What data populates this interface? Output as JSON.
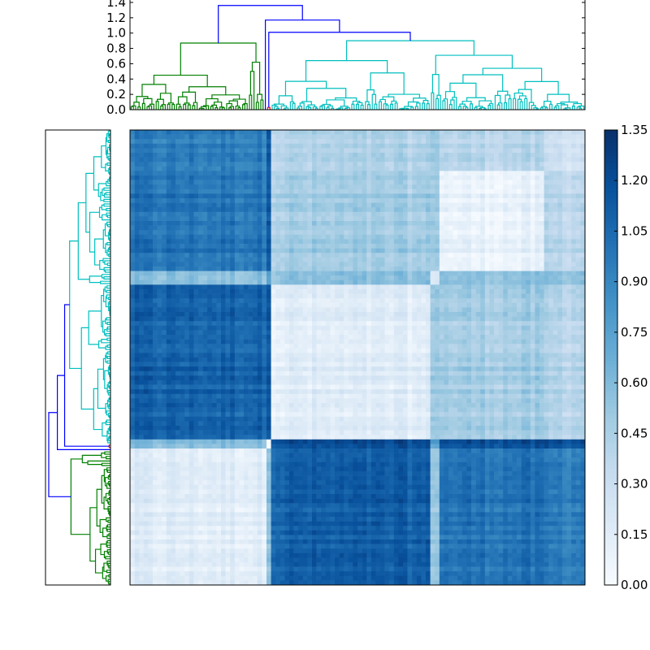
{
  "chart_data": {
    "type": "heatmap",
    "title": "",
    "description_kind": "clustered distance matrix with row and column dendrograms",
    "colormap": "Blues",
    "colormap_stops": [
      "#f7fbff",
      "#deebf7",
      "#c6dbef",
      "#9ecae1",
      "#6baed6",
      "#4292c6",
      "#2171b5",
      "#08519c",
      "#08306b"
    ],
    "value_range": [
      0.0,
      1.35
    ],
    "colorbar": {
      "ticks": [
        0.0,
        0.15,
        0.3,
        0.45,
        0.6,
        0.75,
        0.9,
        1.05,
        1.2,
        1.35
      ],
      "tick_labels": [
        "0.00",
        "0.15",
        "0.30",
        "0.45",
        "0.60",
        "0.75",
        "0.90",
        "1.05",
        "1.20",
        "1.35"
      ],
      "placement": "right"
    },
    "leaf_count": 200,
    "clusters": [
      {
        "name": "green",
        "leaves": [
          0,
          60
        ]
      },
      {
        "name": "red",
        "leaves": [
          60,
          63
        ]
      },
      {
        "name": "cyan-1",
        "leaves": [
          63,
          132
        ]
      },
      {
        "name": "cyan-2a",
        "leaves": [
          132,
          137
        ]
      },
      {
        "name": "cyan-2b",
        "leaves": [
          137,
          182
        ]
      },
      {
        "name": "cyan-2c",
        "leaves": [
          182,
          200
        ]
      }
    ],
    "block_mean_distance": [
      [
        0.15,
        0.6,
        1.1,
        0.55,
        1.0,
        0.95
      ],
      [
        0.6,
        0.02,
        1.2,
        0.8,
        1.2,
        1.2
      ],
      [
        1.1,
        1.2,
        0.15,
        0.55,
        0.48,
        0.42
      ],
      [
        0.55,
        0.8,
        0.55,
        0.2,
        0.55,
        0.55
      ],
      [
        1.0,
        1.2,
        0.48,
        0.55,
        0.1,
        0.4
      ],
      [
        0.95,
        1.2,
        0.42,
        0.55,
        0.4,
        0.28
      ]
    ],
    "dendrogram": {
      "ylim": [
        0.0,
        1.4
      ],
      "yticks": [
        0.0,
        0.2,
        0.4,
        0.6,
        0.8,
        1.0,
        1.2,
        1.4
      ],
      "ytick_labels": [
        "0.0",
        "0.2",
        "0.4",
        "0.6",
        "0.8",
        "1.0",
        "1.2",
        "1.4"
      ],
      "link_colors": {
        "green": "#008000",
        "red": "#ff0000",
        "cyan": "#00bfbf",
        "blue": "#0000ff"
      },
      "tree": {
        "h": 1.36,
        "color": "blue",
        "children": [
          {
            "h": 0.87,
            "color": "green",
            "children": [
              {
                "h": 0.45,
                "color": "green",
                "children": [
                  {
                    "range": [
                      0,
                      20
                    ],
                    "hmax": 0.33,
                    "color": "green"
                  },
                  {
                    "range": [
                      20,
                      52
                    ],
                    "hmax": 0.3,
                    "color": "green"
                  }
                ]
              },
              {
                "h": 0.62,
                "color": "green",
                "children": [
                  {
                    "range": [
                      52,
                      55
                    ],
                    "hmax": 0.5,
                    "color": "green"
                  },
                  {
                    "range": [
                      55,
                      59
                    ],
                    "hmax": 0.2,
                    "color": "green"
                  }
                ]
              }
            ]
          },
          {
            "h": 1.17,
            "color": "blue",
            "children": [
              {
                "range": [
                  59,
                  60
                ],
                "hmax": 0,
                "color": "blue"
              },
              {
                "h": 1.01,
                "color": "blue",
                "children": [
                  {
                    "range": [
                      60,
                      62
                    ],
                    "hmax": 0.03,
                    "color": "red"
                  },
                  {
                    "h": 0.9,
                    "color": "cyan",
                    "children": [
                      {
                        "h": 0.64,
                        "color": "cyan",
                        "children": [
                          {
                            "range": [
                              62,
                              103
                            ],
                            "hmax": 0.37,
                            "color": "cyan"
                          },
                          {
                            "range": [
                              103,
                              132
                            ],
                            "hmax": 0.48,
                            "color": "cyan"
                          }
                        ]
                      },
                      {
                        "h": 0.71,
                        "color": "cyan",
                        "children": [
                          {
                            "range": [
                              132,
                              137
                            ],
                            "hmax": 0.46,
                            "color": "cyan"
                          },
                          {
                            "range": [
                              137,
                              200
                            ],
                            "hmax": 0.54,
                            "color": "cyan"
                          }
                        ]
                      }
                    ]
                  }
                ]
              }
            ]
          }
        ]
      }
    }
  }
}
